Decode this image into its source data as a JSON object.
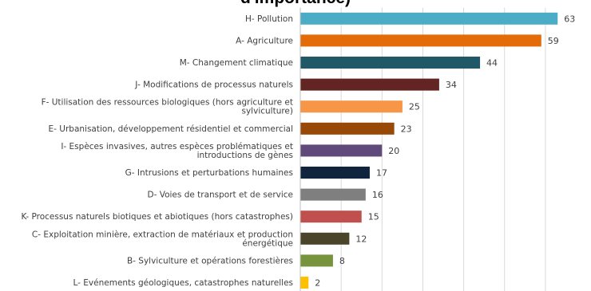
{
  "chart_data": {
    "type": "bar",
    "orientation": "horizontal",
    "title": "d'importance)",
    "xlabel": "",
    "ylabel": "",
    "xlim": [
      0,
      65
    ],
    "grid": true,
    "legend": "none",
    "categories": [
      [
        "H- Pollution"
      ],
      [
        "A- Agriculture"
      ],
      [
        "M- Changement climatique"
      ],
      [
        "J- Modifications de processus naturels"
      ],
      [
        "F- Utilisation des ressources biologiques (hors agriculture et",
        "sylviculture)"
      ],
      [
        "E- Urbanisation, développement résidentiel et commercial"
      ],
      [
        "I- Espèces invasives, autres espèces problématiques et",
        "introductions de gènes"
      ],
      [
        "G- Intrusions et perturbations humaines"
      ],
      [
        "D- Voies de transport et de service"
      ],
      [
        "K- Processus naturels biotiques et abiotiques (hors catastrophes)"
      ],
      [
        "C- Exploitation minière, extraction de matériaux et production",
        "énergétique"
      ],
      [
        "B- Sylviculture et opérations forestières"
      ],
      [
        "L- Evénements géologiques, catastrophes naturelles"
      ]
    ],
    "values": [
      63,
      59,
      44,
      34,
      25,
      23,
      20,
      17,
      16,
      15,
      12,
      8,
      2
    ],
    "value_labels": [
      "63",
      "59",
      "44",
      "34",
      "25",
      "23",
      "20",
      "17",
      "16",
      "15",
      "12",
      "8",
      "2"
    ],
    "colors": [
      "#4bacc6",
      "#e36c09",
      "#215868",
      "#632523",
      "#f79646",
      "#984807",
      "#604a7b",
      "#10243e",
      "#7f7f7f",
      "#c0504d",
      "#4a452a",
      "#77933c",
      "#ffc000"
    ]
  }
}
